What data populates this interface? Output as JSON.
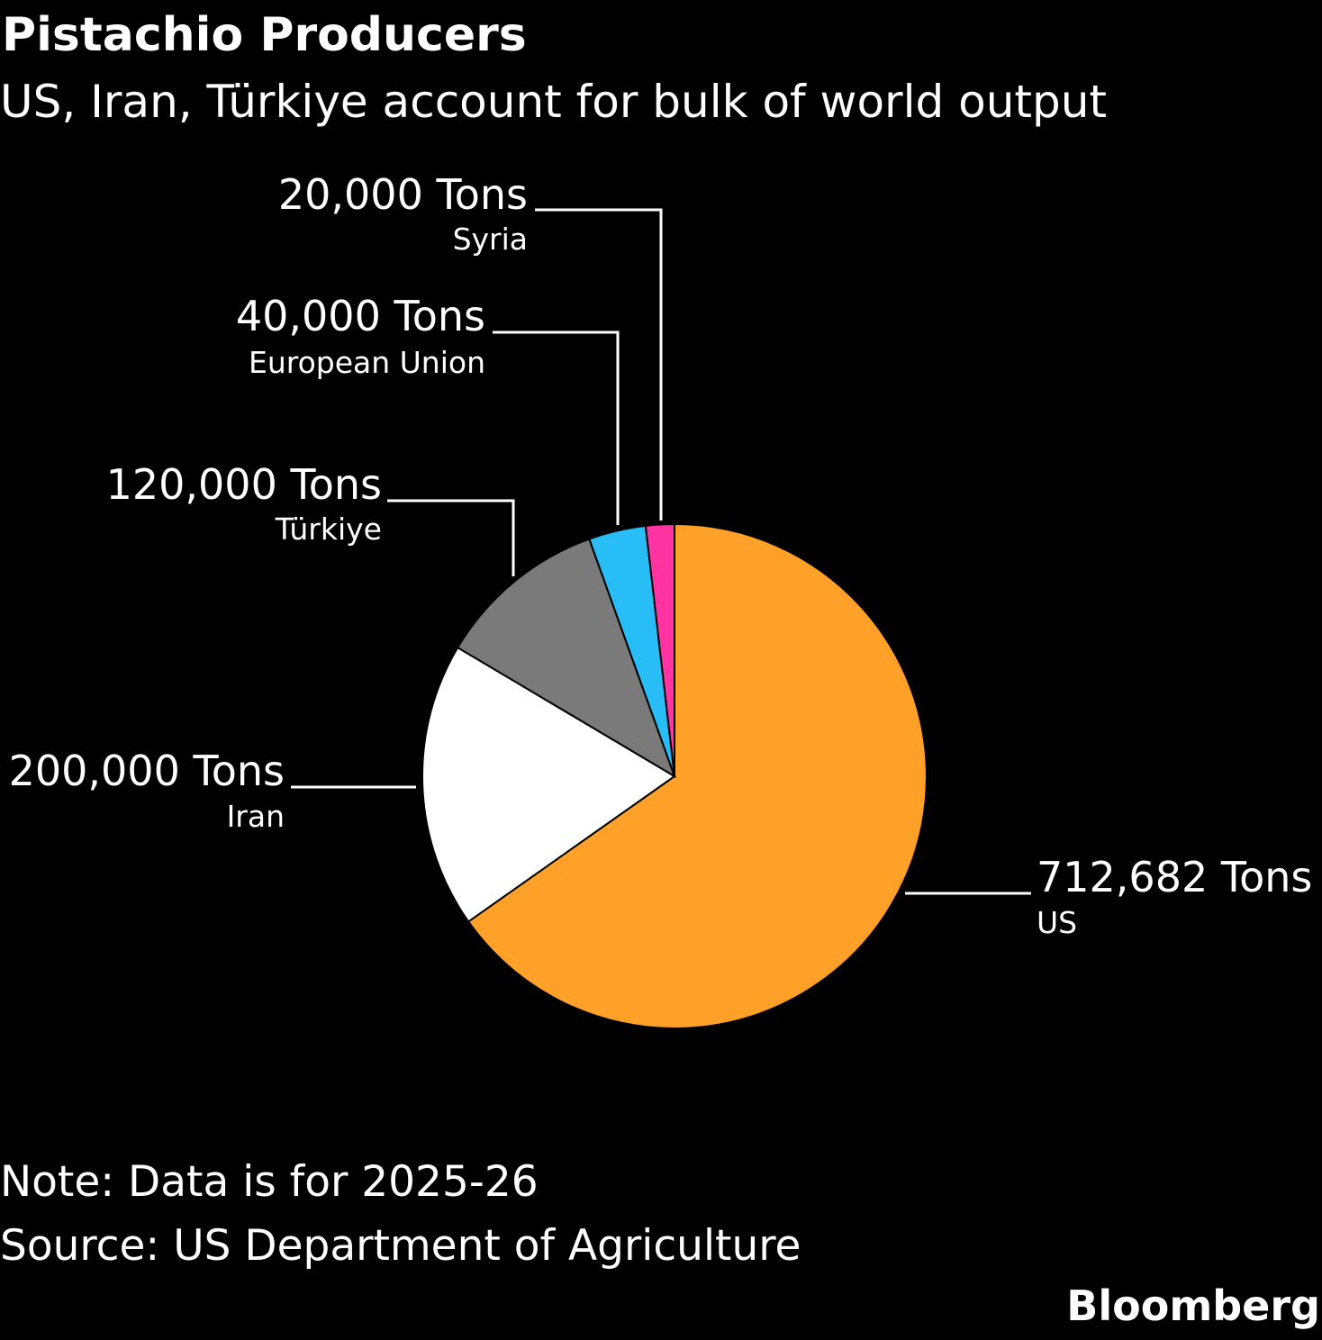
{
  "header": {
    "title": "Pistachio Producers",
    "subtitle": "US, Iran, Türkiye account for bulk of world output"
  },
  "footer": {
    "note": "Note: Data is for 2025-26",
    "source": "Source: US Department of Agriculture",
    "brand": "Bloomberg"
  },
  "chart_data": {
    "type": "pie",
    "title": "Pistachio Producers",
    "subtitle": "US, Iran, Türkiye account for bulk of world output",
    "unit": "Tons",
    "start_angle_deg": 0,
    "direction": "clockwise",
    "slices": [
      {
        "category": "US",
        "value": 712682,
        "value_label": "712,682 Tons",
        "color": "#ffa028"
      },
      {
        "category": "Iran",
        "value": 200000,
        "value_label": "200,000 Tons",
        "color": "#ffffff"
      },
      {
        "category": "Türkiye",
        "value": 120000,
        "value_label": "120,000 Tons",
        "color": "#7a7a7a"
      },
      {
        "category": "European Union",
        "value": 40000,
        "value_label": "40,000 Tons",
        "color": "#28bdf7"
      },
      {
        "category": "Syria",
        "value": 20000,
        "value_label": "20,000 Tons",
        "color": "#ff33a1"
      }
    ]
  }
}
